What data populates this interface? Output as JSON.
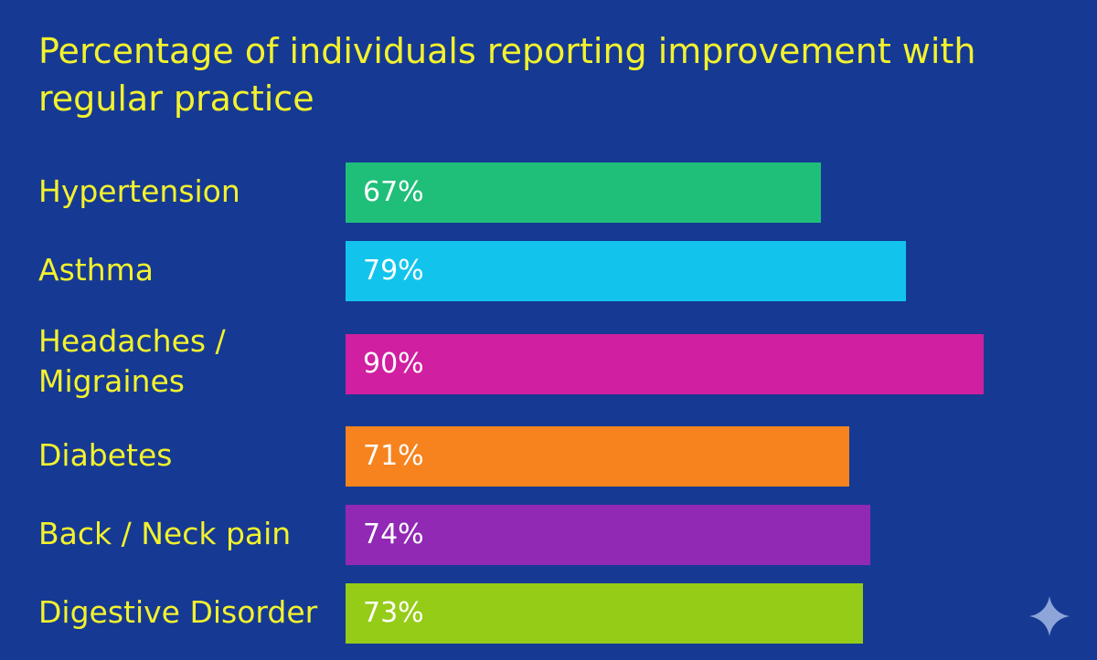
{
  "chart_data": {
    "type": "bar",
    "orientation": "horizontal",
    "title": "Percentage of individuals reporting improvement with regular practice",
    "categories": [
      "Hypertension",
      "Asthma",
      "Headaches / Migraines",
      "Diabetes",
      "Back / Neck pain",
      "Digestive Disorder"
    ],
    "category_lines": [
      [
        "Hypertension"
      ],
      [
        "Asthma"
      ],
      [
        "Headaches /",
        "Migraines"
      ],
      [
        "Diabetes"
      ],
      [
        "Back / Neck pain"
      ],
      [
        "Digestive Disorder"
      ]
    ],
    "values": [
      67,
      79,
      90,
      71,
      74,
      73
    ],
    "value_labels": [
      "67%",
      "79%",
      "90%",
      "71%",
      "74%",
      "73%"
    ],
    "colors": [
      "#1fbf7a",
      "#12c4ec",
      "#d01fa0",
      "#f6831e",
      "#9129b5",
      "#95cc17"
    ],
    "xlim": [
      0,
      100
    ],
    "xlabel": "",
    "ylabel": "",
    "grid": false,
    "legend": "none"
  },
  "colors": {
    "background": "#163a93",
    "title_text": "#f3f22d",
    "category_text": "#f3f22d",
    "value_text": "#ffffff",
    "sparkle": "#8ea5d9"
  },
  "icons": {
    "corner_badge": "sparkle-icon"
  }
}
